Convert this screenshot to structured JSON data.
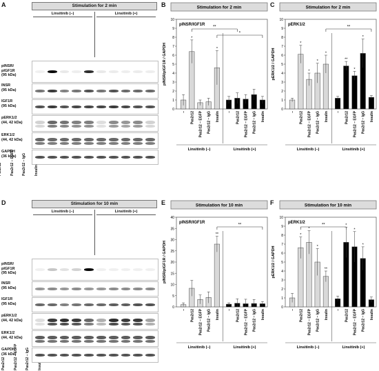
{
  "categories": [
    "–",
    "Pas2r12",
    "Pas2r12 – EGFP",
    "Pas2r12 – IgG",
    "Insulin",
    "–",
    "Pas2r12",
    "Pas2r12 – EGFP",
    "Pas2r12 – IgG",
    "Insulin"
  ],
  "groups": [
    "Linsitinib (–)",
    "Linsitinib (+)"
  ],
  "colors": {
    "minus": "#d9d9d9",
    "plus": "#000000",
    "header": "#dcdcdc"
  },
  "blots": {
    "A": {
      "letter": "A",
      "header": "Stimulation for 2 min",
      "rows": [
        {
          "label": "pINSR/\npIGF1R\n(95 kDa)",
          "intensities": [
            0.02,
            1.0,
            0.05,
            0.03,
            0.85,
            0.05,
            0.04,
            0.03,
            0.04,
            0.03
          ]
        },
        {
          "label": "INSR\n(95 kDa)",
          "intensities": [
            0.55,
            0.8,
            0.5,
            0.55,
            0.7,
            0.55,
            0.7,
            0.6,
            0.6,
            0.6
          ]
        },
        {
          "label": "IGF1R\n(95 kDa)",
          "intensities": [
            0.7,
            0.8,
            0.7,
            0.75,
            0.75,
            0.75,
            0.8,
            0.75,
            0.7,
            0.7
          ]
        },
        {
          "label": "pERK1/2\n(44, 42 kDa)",
          "intensities": [
            0.15,
            0.6,
            0.55,
            0.5,
            0.5,
            0.1,
            0.45,
            0.4,
            0.45,
            0.15
          ]
        },
        {
          "label": "ERK1/2\n(44, 42 kDa)",
          "intensities": [
            0.6,
            0.6,
            0.6,
            0.6,
            0.6,
            0.6,
            0.6,
            0.6,
            0.6,
            0.6
          ]
        },
        {
          "label": "GAPDH\n(36 kDa)",
          "intensities": [
            0.7,
            0.7,
            0.7,
            0.7,
            0.7,
            0.7,
            0.7,
            0.7,
            0.7,
            0.7
          ]
        }
      ]
    },
    "D": {
      "letter": "D",
      "header": "Stimulation for 10 min",
      "rows": [
        {
          "label": "pINSR/\npIGF1R\n(95 kDa)",
          "intensities": [
            0.02,
            0.2,
            0.08,
            0.15,
            1.0,
            0.02,
            0.02,
            0.02,
            0.02,
            0.02
          ]
        },
        {
          "label": "INSR\n(95 kDa)",
          "intensities": [
            0.4,
            0.45,
            0.4,
            0.45,
            0.4,
            0.4,
            0.45,
            0.45,
            0.45,
            0.45
          ]
        },
        {
          "label": "IGF1R\n(95 kDa)",
          "intensities": [
            0.6,
            0.6,
            0.5,
            0.55,
            0.6,
            0.6,
            0.65,
            0.65,
            0.7,
            0.7
          ]
        },
        {
          "label": "pERK1/2\n(44, 42 kDa)",
          "intensities": [
            0.1,
            0.8,
            0.85,
            0.8,
            0.6,
            0.3,
            0.85,
            0.8,
            0.8,
            0.35
          ]
        },
        {
          "label": "ERK1/2\n(44, 42 kDa)",
          "intensities": [
            0.65,
            0.65,
            0.65,
            0.65,
            0.65,
            0.65,
            0.65,
            0.65,
            0.65,
            0.65
          ]
        },
        {
          "label": "GAPDH\n(36 kDa)",
          "intensities": [
            0.7,
            0.7,
            0.7,
            0.7,
            0.7,
            0.7,
            0.7,
            0.7,
            0.7,
            0.7
          ]
        }
      ]
    }
  },
  "chart_data": [
    {
      "panel": "B",
      "type": "bar",
      "title": "Stimulation for 2 min",
      "inset_label": "pINSR/IGF1R",
      "ylabel": "pINSR/pIGF1R / GAPDH",
      "ylim": [
        0,
        10
      ],
      "yticks": [
        0,
        1,
        2,
        3,
        4,
        5,
        6,
        7,
        8,
        9,
        10
      ],
      "categories": [
        "–",
        "Pas2r12",
        "Pas2r12 – EGFP",
        "Pas2r12 – IgG",
        "Insulin",
        "–",
        "Pas2r12",
        "Pas2r12 – EGFP",
        "Pas2r12 – IgG",
        "Insulin"
      ],
      "values": [
        1.0,
        6.4,
        0.7,
        0.8,
        4.6,
        1.0,
        1.2,
        1.1,
        1.6,
        1.0
      ],
      "errors": [
        0.6,
        1.3,
        0.3,
        0.4,
        1.9,
        0.4,
        0.6,
        0.5,
        0.6,
        0.4
      ],
      "stars": [
        "",
        "*",
        "",
        "",
        "*",
        "",
        "",
        "",
        "",
        ""
      ],
      "brackets": [
        {
          "from": 1,
          "to": 6,
          "label": "**"
        },
        {
          "from": 4,
          "to": 9,
          "label": "*"
        }
      ]
    },
    {
      "panel": "C",
      "type": "bar",
      "title": "Stimulation for 2 min",
      "inset_label": "pERK1/2",
      "ylabel": "pERK1/2 / GAPDH",
      "ylim": [
        0,
        10
      ],
      "yticks": [
        0,
        1,
        2,
        3,
        4,
        5,
        6,
        7,
        8,
        9,
        10
      ],
      "categories": [
        "–",
        "Pas2r12",
        "Pas2r12 – EGFP",
        "Pas2r12 – IgG",
        "Insulin",
        "–",
        "Pas2r12",
        "Pas2r12 – EGFP",
        "Pas2r12 – IgG",
        "Insulin"
      ],
      "values": [
        1.0,
        6.1,
        3.3,
        4.0,
        5.0,
        1.2,
        4.8,
        3.7,
        6.2,
        1.3
      ],
      "errors": [
        0.2,
        1.0,
        0.7,
        1.1,
        1.0,
        0.2,
        0.5,
        0.5,
        1.6,
        0.2
      ],
      "stars": [
        "",
        "*",
        "*",
        "*",
        "*",
        "",
        "**",
        "*",
        "*",
        ""
      ],
      "brackets": [
        {
          "from": 4,
          "to": 9,
          "label": "**"
        }
      ]
    },
    {
      "panel": "E",
      "type": "bar",
      "title": "Stimulation for 10 min",
      "inset_label": "pINSR/IGF1R",
      "ylabel": "pINSR/pIGF1R / GAPDH",
      "ylim": [
        0,
        40
      ],
      "yticks": [
        0,
        5,
        10,
        15,
        20,
        25,
        30,
        35,
        40
      ],
      "categories": [
        "–",
        "Pas2r12",
        "Pas2r12 – EGFP",
        "Pas2r12 – IgG",
        "Insulin",
        "–",
        "Pas2r12",
        "Pas2r12 – EGFP",
        "Pas2r12 – IgG",
        "Insulin"
      ],
      "values": [
        1.0,
        8.3,
        3.3,
        4.2,
        28.0,
        1.2,
        1.6,
        1.4,
        1.5,
        1.4
      ],
      "errors": [
        0.8,
        3.5,
        2.0,
        2.5,
        3.5,
        0.6,
        2.0,
        2.0,
        1.8,
        1.0
      ],
      "stars": [
        "",
        "",
        "",
        "",
        "**",
        "",
        "",
        "",
        "",
        ""
      ],
      "brackets": [
        {
          "from": 4,
          "to": 9,
          "label": "**"
        }
      ]
    },
    {
      "panel": "F",
      "type": "bar",
      "title": "Stimulation for 10 min",
      "inset_label": "pERK1/2",
      "ylabel": "pERK1/2 / GAPDH",
      "ylim": [
        0,
        10
      ],
      "yticks": [
        0,
        1,
        2,
        3,
        4,
        5,
        6,
        7,
        8,
        9,
        10
      ],
      "categories": [
        "–",
        "Pas2r12",
        "Pas2r12 – EGFP",
        "Pas2r12 – IgG",
        "Insulin",
        "–",
        "Pas2r12",
        "Pas2r12 – EGFP",
        "Pas2r12 – IgG",
        "Insulin"
      ],
      "values": [
        1.0,
        6.6,
        7.2,
        5.0,
        3.4,
        0.9,
        7.2,
        6.7,
        5.4,
        0.8
      ],
      "errors": [
        0.5,
        1.2,
        1.3,
        1.5,
        0.6,
        0.3,
        1.7,
        1.7,
        1.3,
        0.3
      ],
      "stars": [
        "",
        "*",
        "*",
        "*",
        "**",
        "",
        "*",
        "*",
        "*",
        ""
      ],
      "brackets": [
        {
          "from": 1,
          "to": 6,
          "label": "**"
        }
      ]
    }
  ]
}
